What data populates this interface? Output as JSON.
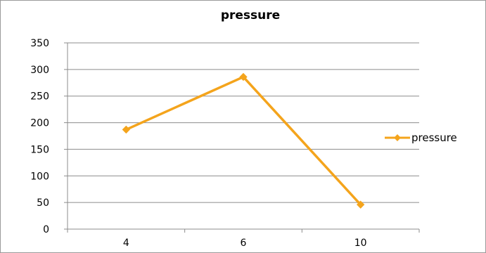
{
  "chart_data": {
    "type": "line",
    "title": "pressure",
    "categories": [
      "4",
      "6",
      "10"
    ],
    "series": [
      {
        "name": "pressure",
        "values": [
          187,
          286,
          46
        ],
        "color": "#f4a41c"
      }
    ],
    "ylim": [
      0,
      350
    ],
    "yticks": [
      0,
      50,
      100,
      150,
      200,
      250,
      300,
      350
    ],
    "grid": true,
    "legend_position": "right",
    "xlabel": "",
    "ylabel": ""
  }
}
